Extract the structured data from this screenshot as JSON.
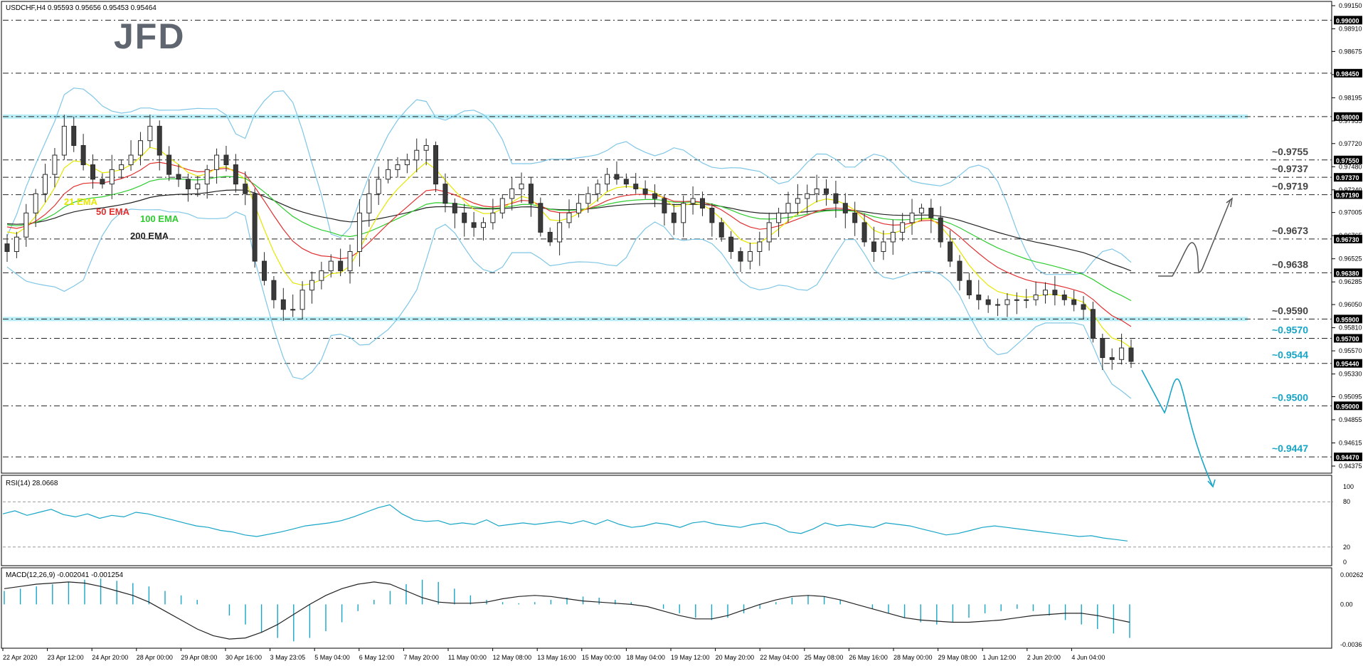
{
  "header": {
    "symbol_info": "USDCHF,H4  0.95593 0.95656 0.95453 0.95464",
    "logo_text": "JFD"
  },
  "colors": {
    "bull": "#ffffff",
    "bear": "#3a3a3a",
    "wick": "#2a2a2a",
    "ema21": "#e6e600",
    "ema50": "#e03030",
    "ema100": "#2ecc2e",
    "ema200": "#222222",
    "bollinger": "#7fc6e6",
    "highlight": "#7fe0f0",
    "accent": "#17a5c7",
    "rsi": "#17a5c7",
    "macd_hist": "#17a5c7",
    "macd_signal": "#222222"
  },
  "chart_data": {
    "type": "candlestick",
    "symbol": "USDCHF",
    "timeframe": "H4",
    "ohlc_header": {
      "open": 0.95593,
      "high": 0.95656,
      "low": 0.95453,
      "close": 0.95464
    },
    "ylim": [
      0.94375,
      0.9915
    ],
    "y_ticks": [
      "0.99150",
      "0.98910",
      "0.98675",
      "0.98435",
      "0.98195",
      "0.97955",
      "0.97720",
      "0.97480",
      "0.97240",
      "0.97005",
      "0.96765",
      "0.96525",
      "0.96285",
      "0.96050",
      "0.95810",
      "0.95570",
      "0.95330",
      "0.95095",
      "0.94855",
      "0.94615",
      "0.94375"
    ],
    "x_labels": [
      "22 Apr 2020",
      "23 Apr 12:00",
      "24 Apr 20:00",
      "28 Apr 00:00",
      "29 Apr 08:00",
      "30 Apr 16:00",
      "3 May 23:05",
      "5 May 04:00",
      "6 May 12:00",
      "7 May 20:00",
      "11 May 00:00",
      "12 May 08:00",
      "13 May 16:00",
      "15 May 00:00",
      "18 May 04:00",
      "19 May 12:00",
      "20 May 20:00",
      "22 May 04:00",
      "25 May 08:00",
      "26 May 16:00",
      "28 May 00:00",
      "29 May 08:00",
      "1 Jun 12:00",
      "2 Jun 20:00",
      "4 Jun 04:00"
    ],
    "close_series": [
      0.966,
      0.9675,
      0.97,
      0.972,
      0.974,
      0.976,
      0.979,
      0.977,
      0.975,
      0.9735,
      0.973,
      0.9745,
      0.975,
      0.976,
      0.9775,
      0.979,
      0.976,
      0.974,
      0.9735,
      0.9725,
      0.973,
      0.9745,
      0.976,
      0.975,
      0.973,
      0.972,
      0.965,
      0.963,
      0.961,
      0.96,
      0.96,
      0.962,
      0.963,
      0.964,
      0.965,
      0.964,
      0.966,
      0.97,
      0.972,
      0.9735,
      0.9745,
      0.975,
      0.9755,
      0.9765,
      0.977,
      0.973,
      0.971,
      0.97,
      0.969,
      0.9685,
      0.969,
      0.97,
      0.9715,
      0.9725,
      0.973,
      0.971,
      0.968,
      0.967,
      0.969,
      0.97,
      0.971,
      0.972,
      0.973,
      0.974,
      0.9735,
      0.973,
      0.9725,
      0.972,
      0.9715,
      0.97,
      0.969,
      0.971,
      0.9715,
      0.9705,
      0.969,
      0.9675,
      0.966,
      0.965,
      0.966,
      0.967,
      0.969,
      0.97,
      0.971,
      0.9715,
      0.972,
      0.9725,
      0.972,
      0.971,
      0.97,
      0.969,
      0.967,
      0.966,
      0.967,
      0.968,
      0.969,
      0.97,
      0.9705,
      0.9695,
      0.967,
      0.965,
      0.963,
      0.9615,
      0.961,
      0.9605,
      0.9605,
      0.961,
      0.961,
      0.961,
      0.9615,
      0.962,
      0.9615,
      0.961,
      0.9605,
      0.96,
      0.957,
      0.955,
      0.9548,
      0.956,
      0.9546
    ],
    "levels": [
      {
        "label": "~0.9755",
        "value": 0.9755,
        "color": "#444444"
      },
      {
        "label": "~0.9737",
        "value": 0.9737,
        "color": "#444444"
      },
      {
        "label": "~0.9719",
        "value": 0.9719,
        "color": "#444444"
      },
      {
        "label": "~0.9673",
        "value": 0.9673,
        "color": "#444444"
      },
      {
        "label": "~0.9638",
        "value": 0.9638,
        "color": "#444444"
      },
      {
        "label": "~0.9590",
        "value": 0.959,
        "color": "#444444"
      },
      {
        "label": "~0.9570",
        "value": 0.957,
        "color": "#17a5c7"
      },
      {
        "label": "~0.9544",
        "value": 0.9544,
        "color": "#17a5c7"
      },
      {
        "label": "~0.9500",
        "value": 0.95,
        "color": "#17a5c7"
      },
      {
        "label": "~0.9447",
        "value": 0.9447,
        "color": "#17a5c7"
      }
    ],
    "axis_level_tags": [
      "0.99000",
      "0.98450",
      "0.98000",
      "0.97550",
      "0.97370",
      "0.97190",
      "0.96730",
      "0.96380",
      "0.95900",
      "0.95700",
      "0.95440",
      "0.95000",
      "0.94470"
    ],
    "highlight_levels": [
      0.98,
      0.959
    ],
    "ema_legend": [
      {
        "name": "21 EMA",
        "color": "#e6e600"
      },
      {
        "name": "50 EMA",
        "color": "#e03030"
      },
      {
        "name": "100 EMA",
        "color": "#2ecc2e"
      },
      {
        "name": "200 EMA",
        "color": "#222222"
      }
    ],
    "rsi": {
      "label": "RSI(14) 28.0668",
      "ylim": [
        0,
        100
      ],
      "ticks": [
        "100",
        "80",
        "20",
        "0"
      ],
      "guides": [
        80,
        20
      ],
      "values": [
        64,
        68,
        62,
        66,
        70,
        63,
        60,
        64,
        58,
        62,
        60,
        66,
        64,
        60,
        56,
        52,
        48,
        46,
        42,
        40,
        36,
        34,
        37,
        40,
        44,
        48,
        50,
        52,
        55,
        60,
        66,
        72,
        76,
        64,
        56,
        54,
        55,
        50,
        52,
        50,
        56,
        48,
        50,
        52,
        50,
        52,
        54,
        51,
        55,
        50,
        56,
        50,
        46,
        48,
        52,
        50,
        46,
        52,
        54,
        50,
        48,
        46,
        50,
        52,
        48,
        40,
        38,
        44,
        52,
        48,
        50,
        48,
        46,
        52,
        50,
        48,
        44,
        40,
        36,
        38,
        42,
        46,
        48,
        46,
        44,
        42,
        40,
        38,
        36,
        34,
        35,
        32,
        30,
        28
      ]
    },
    "macd": {
      "label": "MACD(12,26,9) -0.002041 -0.001254",
      "ylim": [
        -0.0036,
        0.002629
      ],
      "ticks": [
        "0.002629",
        "0.00",
        "-0.0036"
      ],
      "histogram": [
        0.0012,
        0.0014,
        0.0016,
        0.0018,
        0.002,
        0.0022,
        0.0023,
        0.0021,
        0.0019,
        0.0016,
        0.0012,
        0.0008,
        0.0004,
        0.0,
        -0.001,
        -0.0018,
        -0.0025,
        -0.003,
        -0.0033,
        -0.003,
        -0.0024,
        -0.0016,
        -0.0006,
        0.0004,
        0.0012,
        0.0018,
        0.0022,
        0.002,
        0.0014,
        0.0008,
        0.0004,
        0.0002,
        0.0001,
        0.0002,
        0.0004,
        0.0006,
        0.0007,
        0.0006,
        0.0004,
        0.0002,
        0.0,
        -0.0004,
        -0.0008,
        -0.0012,
        -0.0014,
        -0.0012,
        -0.0008,
        -0.0004,
        0.0002,
        0.0006,
        0.0008,
        0.0007,
        0.0004,
        0.0,
        -0.0004,
        -0.0008,
        -0.0012,
        -0.0016,
        -0.0018,
        -0.0016,
        -0.0012,
        -0.0008,
        -0.0006,
        -0.0004,
        -0.0006,
        -0.001,
        -0.0014,
        -0.0018,
        -0.0022,
        -0.0026,
        -0.003
      ],
      "signal": [
        0.0014,
        0.0016,
        0.0018,
        0.0019,
        0.002,
        0.0019,
        0.0016,
        0.0012,
        0.0008,
        0.0002,
        -0.0006,
        -0.0014,
        -0.0022,
        -0.0028,
        -0.0031,
        -0.003,
        -0.0025,
        -0.0018,
        -0.0009,
        0.0,
        0.0008,
        0.0014,
        0.0018,
        0.002,
        0.0018,
        0.0012,
        0.0006,
        0.0002,
        0.0001,
        0.0001,
        0.0002,
        0.0005,
        0.0007,
        0.0008,
        0.0007,
        0.0005,
        0.0003,
        0.0002,
        0.0001,
        0.0,
        -0.0002,
        -0.0006,
        -0.001,
        -0.0013,
        -0.0013,
        -0.001,
        -0.0005,
        0.0,
        0.0004,
        0.0007,
        0.0008,
        0.0007,
        0.0004,
        0.0,
        -0.0004,
        -0.0008,
        -0.0012,
        -0.0014,
        -0.0015,
        -0.0016,
        -0.0016,
        -0.0015,
        -0.0014,
        -0.0012,
        -0.001,
        -0.0009,
        -0.0008,
        -0.0008,
        -0.001,
        -0.0013,
        -0.0016
      ]
    }
  }
}
